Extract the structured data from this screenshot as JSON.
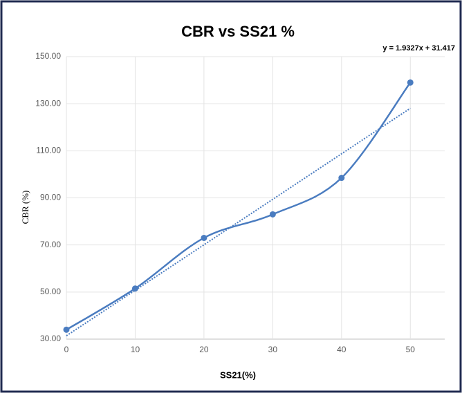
{
  "chart_data": {
    "type": "line",
    "title": "CBR vs SS21 %",
    "xlabel": "SS21(%)",
    "ylabel": "CBR (%)",
    "annotation": "y = 1.9327x + 31.417",
    "x": [
      0,
      10,
      20,
      30,
      40,
      50
    ],
    "series": [
      {
        "color": "#4a7cc0",
        "values": [
          34,
          51.5,
          73,
          83,
          98.5,
          139
        ]
      }
    ],
    "trendline": {
      "color": "#4a7cc0",
      "x": [
        0,
        50
      ],
      "values": [
        31.417,
        128.052
      ]
    },
    "xlim": [
      0,
      55
    ],
    "xticks": [
      0,
      10,
      20,
      30,
      40,
      50
    ],
    "ylim": [
      30,
      150
    ],
    "yticks": [
      {
        "value": 30,
        "label": "30.00"
      },
      {
        "value": 50,
        "label": "50.00"
      },
      {
        "value": 70,
        "label": "70.00"
      },
      {
        "value": 90,
        "label": "90.00"
      },
      {
        "value": 110,
        "label": "110.00"
      },
      {
        "value": 130,
        "label": "130.00"
      },
      {
        "value": 150,
        "label": "150.00"
      }
    ],
    "grid": true
  }
}
